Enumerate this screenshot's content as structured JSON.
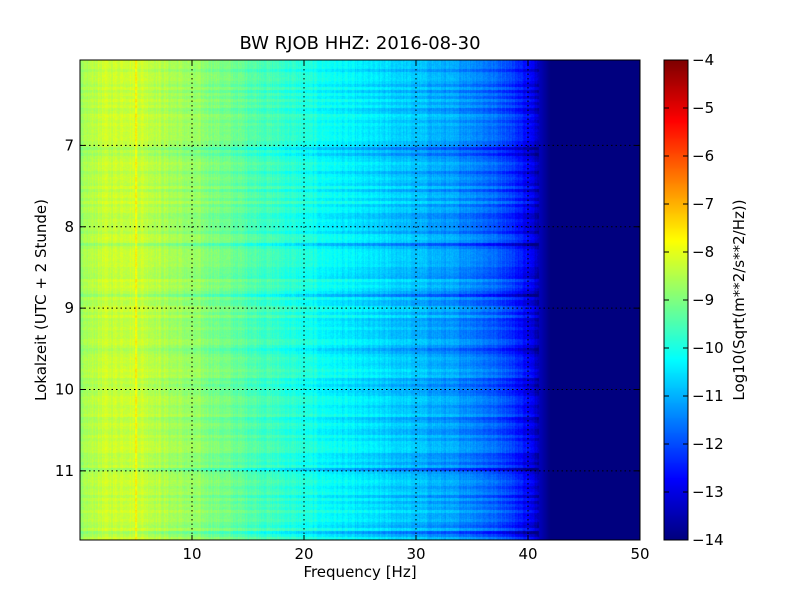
{
  "chart_data": {
    "type": "heatmap",
    "title": "BW RJOB HHZ: 2016-08-30",
    "xlabel": "Frequency [Hz]",
    "ylabel": "Lokalzeit (UTC + 2 Stunde)",
    "xlim": [
      0,
      50
    ],
    "ylim": [
      11.85,
      6.0
    ],
    "y_inverted": true,
    "x_ticks": [
      10,
      20,
      30,
      40,
      50
    ],
    "y_ticks": [
      7,
      8,
      9,
      10,
      11
    ],
    "grid": true,
    "colormap": "jet",
    "colorbar": {
      "label": "Log10(Sqrt(m**2/s**2/Hz))",
      "range": [
        -14,
        -4
      ],
      "ticks": [
        -4,
        -5,
        -6,
        -7,
        -8,
        -9,
        -10,
        -11,
        -12,
        -13,
        -14
      ]
    },
    "profile": {
      "frequency_hz": [
        0,
        0.5,
        2,
        5,
        8,
        12,
        16,
        20,
        25,
        30,
        35,
        38,
        40,
        41,
        42,
        45,
        50
      ],
      "log10_amplitude": [
        -9.0,
        -8.6,
        -8.3,
        -8.2,
        -8.6,
        -9.0,
        -9.5,
        -10.0,
        -10.5,
        -10.9,
        -11.4,
        -12.0,
        -12.8,
        -13.4,
        -14.0,
        -14.0,
        -14.0
      ]
    }
  }
}
